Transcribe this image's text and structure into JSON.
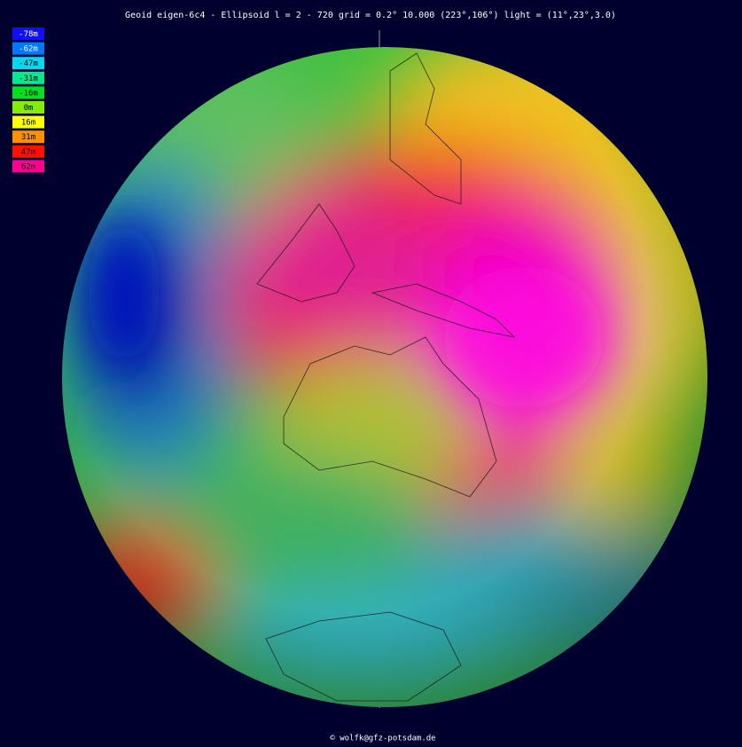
{
  "header": {
    "title": "Geoid eigen-6c4 - Ellipsoid l = 2 - 720 grid = 0.2° 10.000 (223°,106°) light = (11°,23°,3.0)"
  },
  "legend": {
    "entries": [
      {
        "label": "-78m",
        "color": "#1010ff"
      },
      {
        "label": "-62m",
        "color": "#0078ff"
      },
      {
        "label": "-47m",
        "color": "#00d8f0"
      },
      {
        "label": "-31m",
        "color": "#00e890"
      },
      {
        "label": "-16m",
        "color": "#00e020"
      },
      {
        "label": "0m",
        "color": "#80f000"
      },
      {
        "label": "16m",
        "color": "#ffff00"
      },
      {
        "label": "31m",
        "color": "#ff9000"
      },
      {
        "label": "47m",
        "color": "#ff1000"
      },
      {
        "label": "62m",
        "color": "#ff0090"
      }
    ]
  },
  "footer": {
    "credit": "© wolfk@gfz-potsdam.de"
  }
}
